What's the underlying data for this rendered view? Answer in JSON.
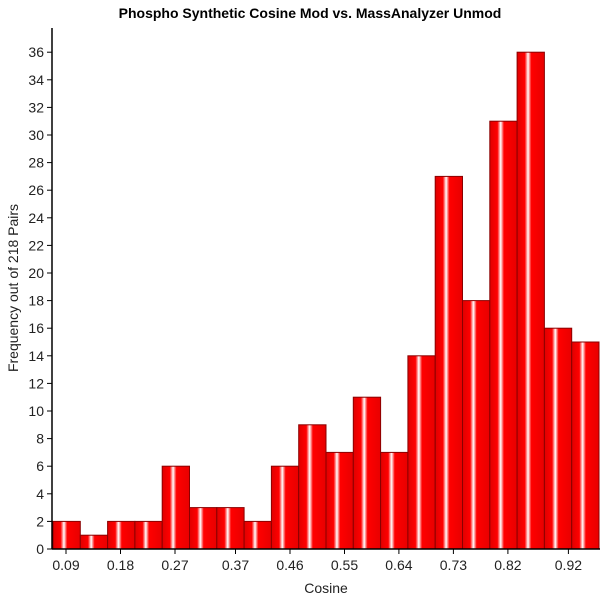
{
  "chart_data": {
    "type": "bar",
    "title": "Phospho Synthetic Cosine Mod vs. MassAnalyzer Unmod",
    "xlabel": "Cosine",
    "ylabel": "Frequency out of 218 Pairs",
    "x_tick_labels": [
      "0.09",
      "0.18",
      "0.27",
      "0.37",
      "0.46",
      "0.55",
      "0.64",
      "0.73",
      "0.82",
      "0.92"
    ],
    "y_ticks": [
      0,
      2,
      4,
      6,
      8,
      10,
      12,
      14,
      16,
      18,
      20,
      22,
      24,
      26,
      28,
      30,
      32,
      34,
      36
    ],
    "ylim": [
      0,
      37.5
    ],
    "bin_start": 0.0685,
    "bin_width": 0.0451,
    "values": [
      2,
      1,
      2,
      2,
      6,
      3,
      3,
      2,
      6,
      9,
      7,
      11,
      7,
      14,
      27,
      18,
      31,
      36,
      16,
      15
    ],
    "bar_color": "#ff0000",
    "grid": false
  }
}
